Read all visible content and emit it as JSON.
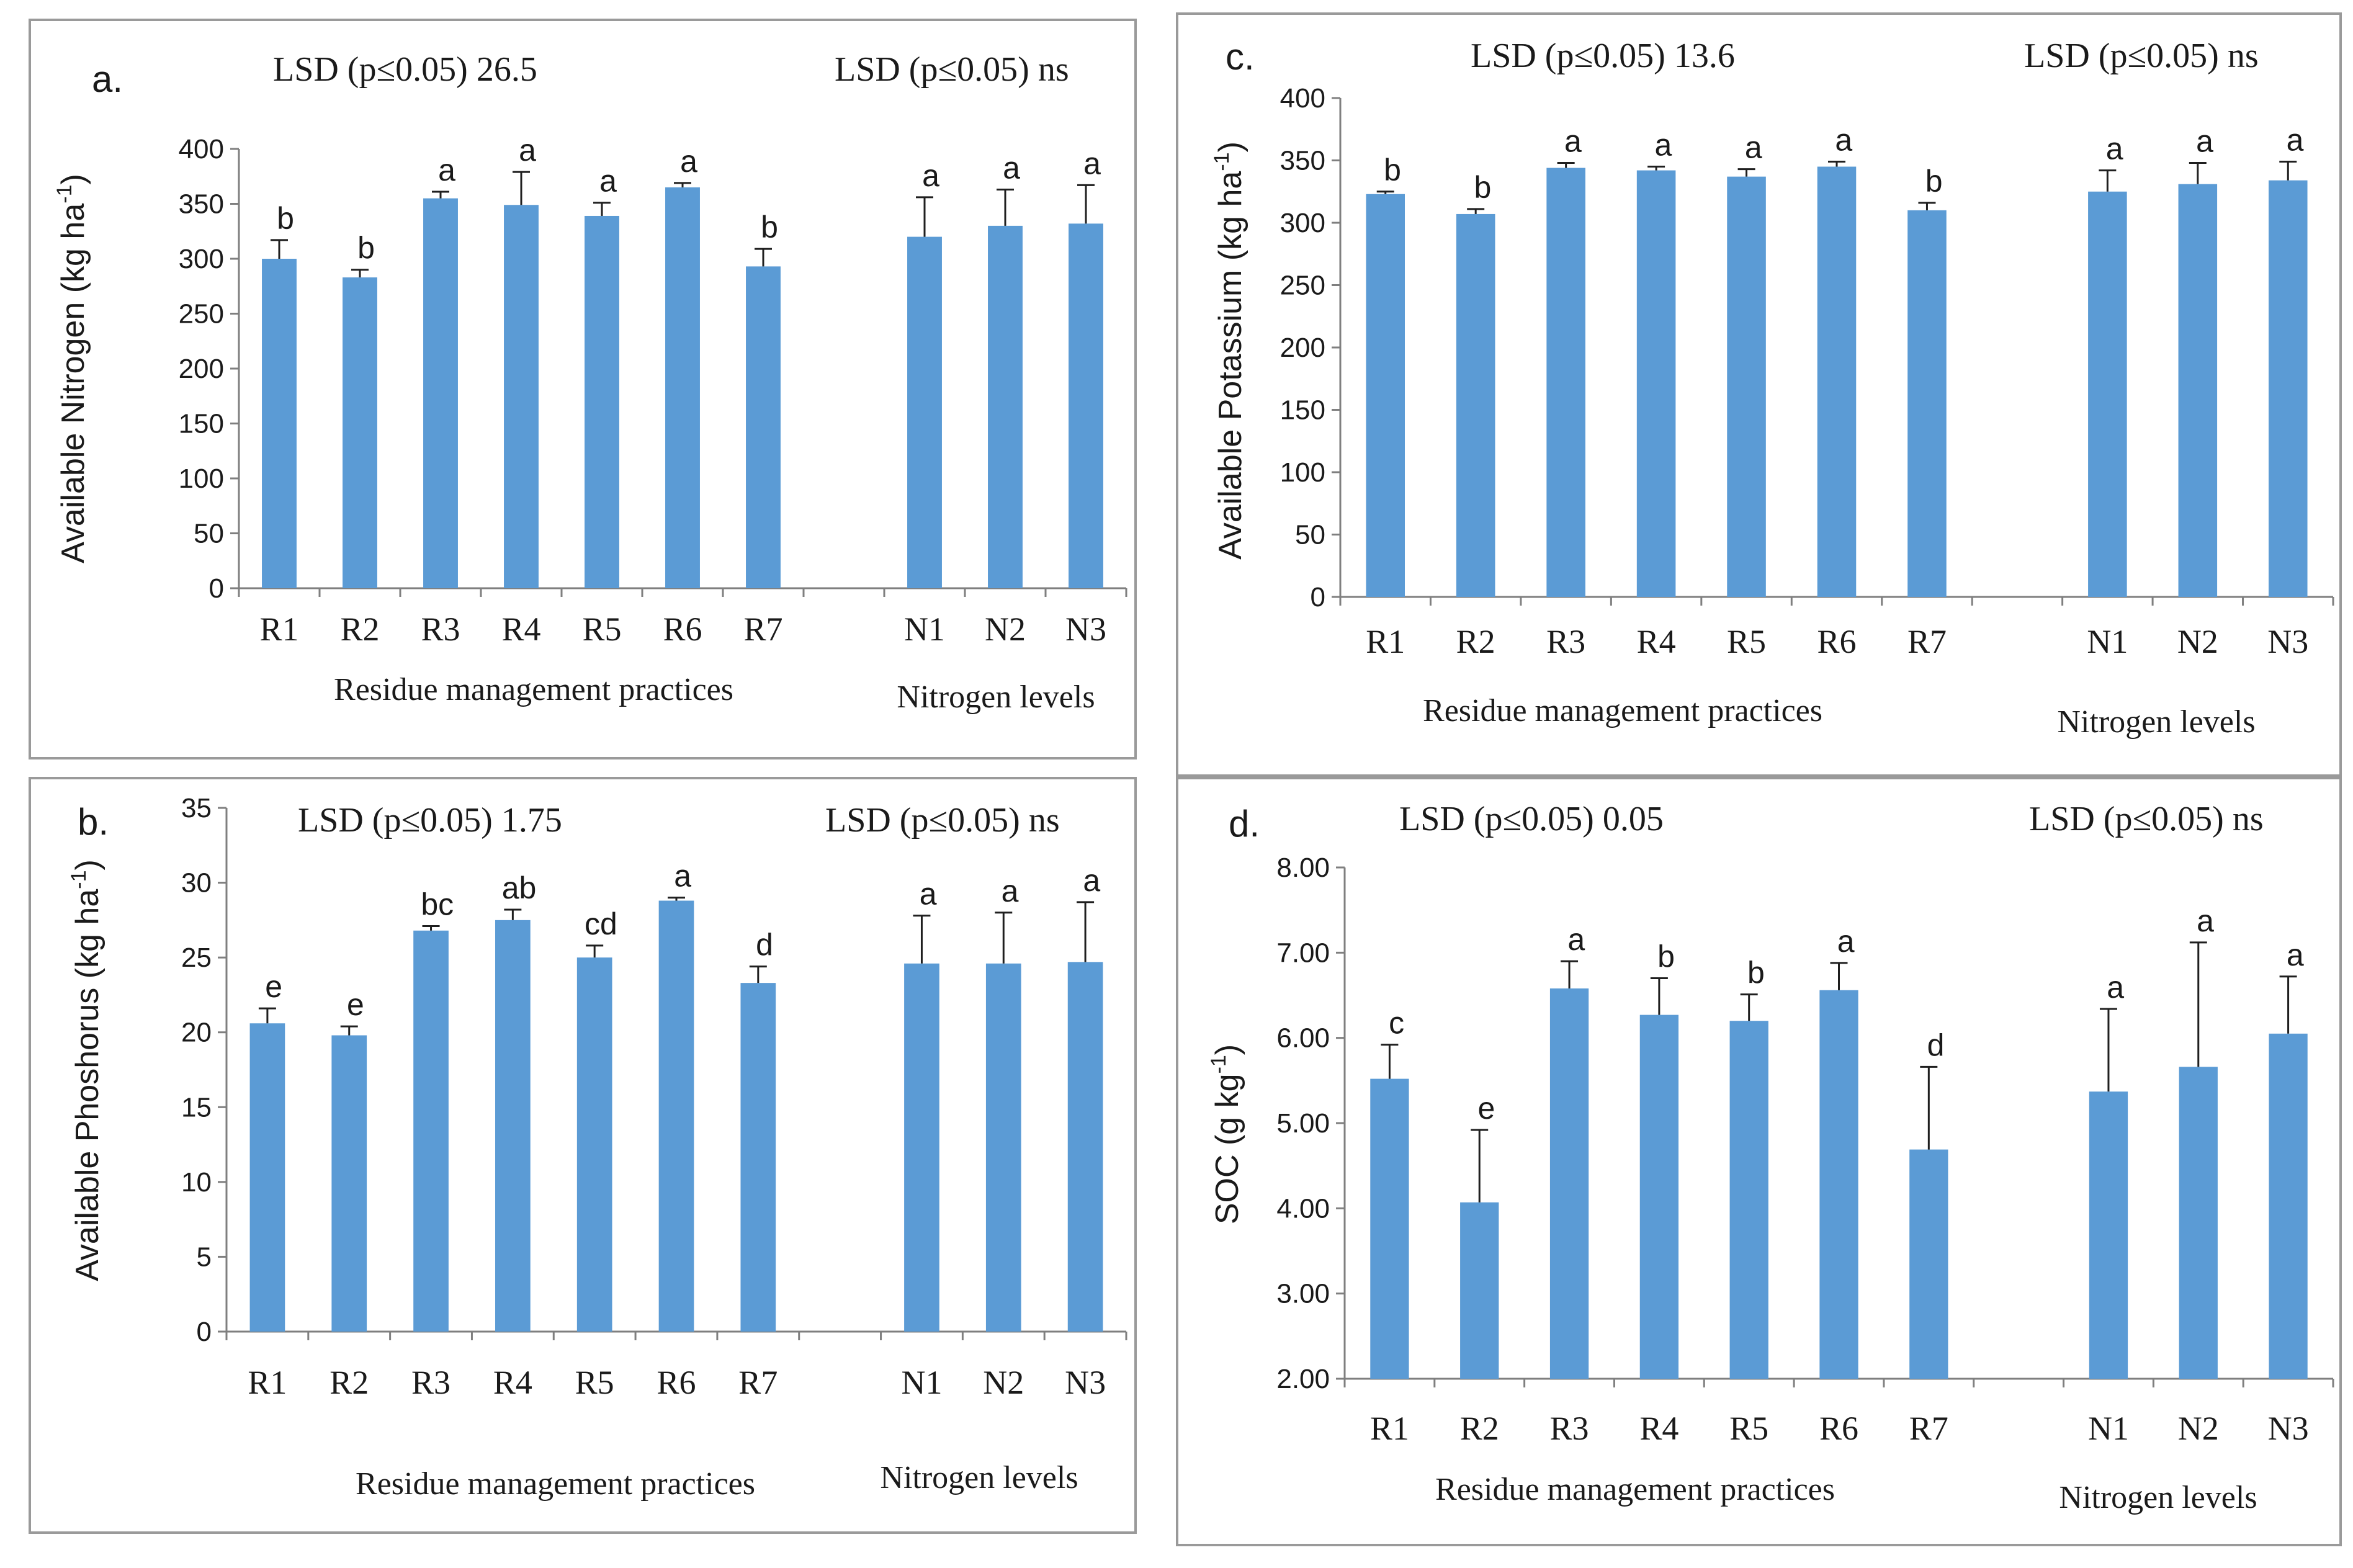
{
  "chart_data": [
    {
      "type": "bar",
      "panel_label": "a.",
      "title": "",
      "lsd_residue": "LSD (p≤0.05) 26.5",
      "lsd_nitrogen": "LSD (p≤0.05) ns",
      "ylabel": "Available Nitrogen (kg ha-1)",
      "ylabel_main": "Available Nitrogen (kg ha",
      "ylabel_sup": "-1",
      "ylabel_end": ")",
      "ylim": [
        0,
        400
      ],
      "yticks": [
        "0",
        "50",
        "100",
        "150",
        "200",
        "250",
        "300",
        "350",
        "400"
      ],
      "ytick_values": [
        0,
        50,
        100,
        150,
        200,
        250,
        300,
        350,
        400
      ],
      "categories": [
        "R1",
        "R2",
        "R3",
        "R4",
        "R5",
        "R6",
        "R7",
        "N1",
        "N2",
        "N3"
      ],
      "values": [
        300,
        283,
        355,
        349,
        339,
        365,
        293,
        320,
        330,
        332
      ],
      "errors": [
        17,
        7,
        6,
        30,
        12,
        4,
        16,
        36,
        33,
        35
      ],
      "letters": [
        "b",
        "b",
        "a",
        "a",
        "a",
        "a",
        "b",
        "a",
        "a",
        "a"
      ],
      "group_labels": [
        "Residue management  practices",
        "Nitrogen  levels"
      ]
    },
    {
      "type": "bar",
      "panel_label": "b.",
      "title": "",
      "lsd_residue": "LSD (p≤0.05) 1.75",
      "lsd_nitrogen": "LSD (p≤0.05) ns",
      "ylabel": "Available Phoshorus (kg ha-1)",
      "ylabel_main": "Available Phoshorus (kg ha",
      "ylabel_sup": "-1",
      "ylabel_end": ")",
      "ylim": [
        0,
        35
      ],
      "yticks": [
        "0",
        "5",
        "10",
        "15",
        "20",
        "25",
        "30",
        "35"
      ],
      "ytick_values": [
        0,
        5,
        10,
        15,
        20,
        25,
        30,
        35
      ],
      "categories": [
        "R1",
        "R2",
        "R3",
        "R4",
        "R5",
        "R6",
        "R7",
        "N1",
        "N2",
        "N3"
      ],
      "values": [
        20.6,
        19.8,
        26.8,
        27.5,
        25.0,
        28.8,
        23.3,
        24.6,
        24.6,
        24.7
      ],
      "errors": [
        1.0,
        0.6,
        0.3,
        0.7,
        0.8,
        0.2,
        1.1,
        3.2,
        3.4,
        4.0
      ],
      "letters": [
        "e",
        "e",
        "bc",
        "ab",
        "cd",
        "a",
        "d",
        "a",
        "a",
        "a"
      ],
      "group_labels": [
        "Residue management  practices",
        "Nitrogen  levels"
      ]
    },
    {
      "type": "bar",
      "panel_label": "c.",
      "title": "",
      "lsd_residue": "LSD (p≤0.05)  13.6",
      "lsd_nitrogen": "LSD (p≤0.05) ns",
      "ylabel": "Available Potassium (kg ha-1)",
      "ylabel_main": "Available Potassium (kg ha",
      "ylabel_sup": "-1",
      "ylabel_end": ")",
      "ylim": [
        0,
        400
      ],
      "yticks": [
        "0",
        "50",
        "100",
        "150",
        "200",
        "250",
        "300",
        "350",
        "400"
      ],
      "ytick_values": [
        0,
        50,
        100,
        150,
        200,
        250,
        300,
        350,
        400
      ],
      "categories": [
        "R1",
        "R2",
        "R3",
        "R4",
        "R5",
        "R6",
        "R7",
        "N1",
        "N2",
        "N3"
      ],
      "values": [
        323,
        307,
        344,
        342,
        337,
        345,
        310,
        325,
        331,
        334
      ],
      "errors": [
        2,
        4,
        4,
        3,
        6,
        4,
        6,
        17,
        17,
        15
      ],
      "letters": [
        "b",
        "b",
        "a",
        "a",
        "a",
        "a",
        "b",
        "a",
        "a",
        "a"
      ],
      "group_labels": [
        "Residue management  practices",
        "Nitrogen  levels"
      ]
    },
    {
      "type": "bar",
      "panel_label": "d.",
      "title": "",
      "lsd_residue": "LSD (p≤0.05)  0.05",
      "lsd_nitrogen": "LSD (p≤0.05) ns",
      "ylabel": "SOC (g kg-1)",
      "ylabel_main": "SOC (g kg",
      "ylabel_sup": "-1",
      "ylabel_end": ")",
      "ylim": [
        2.0,
        8.0
      ],
      "yticks": [
        "2.00",
        "3.00",
        "4.00",
        "5.00",
        "6.00",
        "7.00",
        "8.00"
      ],
      "ytick_values": [
        2,
        3,
        4,
        5,
        6,
        7,
        8
      ],
      "categories": [
        "R1",
        "R2",
        "R3",
        "R4",
        "R5",
        "R6",
        "R7",
        "N1",
        "N2",
        "N3"
      ],
      "values": [
        5.52,
        4.07,
        6.58,
        6.27,
        6.2,
        6.56,
        4.69,
        5.37,
        5.66,
        6.05
      ],
      "errors": [
        0.4,
        0.85,
        0.32,
        0.43,
        0.31,
        0.32,
        0.97,
        0.97,
        1.46,
        0.67
      ],
      "letters": [
        "c",
        "e",
        "a",
        "b",
        "b",
        "a",
        "d",
        "a",
        "a",
        "a"
      ],
      "group_labels": [
        "Residue management  practices",
        "Nitrogen  levels"
      ]
    }
  ],
  "colors": {
    "bar": "#5b9bd5",
    "axis": "#7f7f7f",
    "text": "#1a1a1a",
    "frame": "#9a9a9a"
  }
}
